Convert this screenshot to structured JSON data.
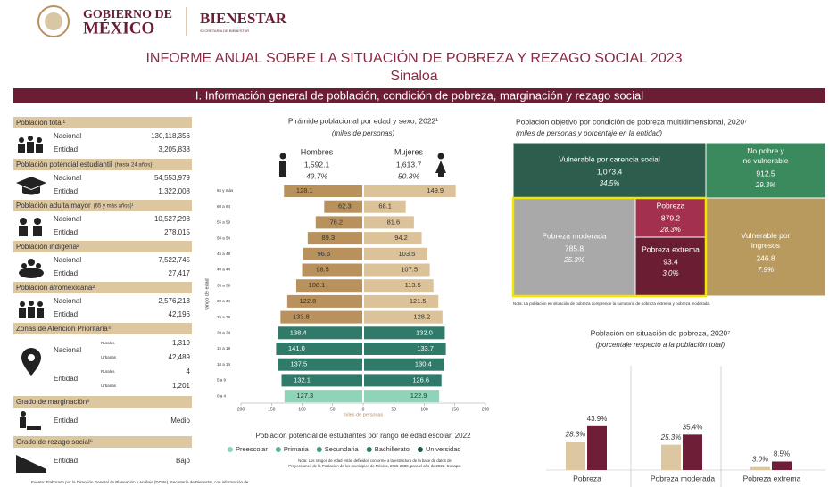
{
  "header": {
    "gov_line1": "GOBIERNO DE",
    "gov_line2": "MÉXICO",
    "agency": "BIENESTAR",
    "agency_sub": "SECRETARÍA DE BIENESTAR"
  },
  "title": "INFORME ANUAL SOBRE LA SITUACIÓN DE POBREZA Y REZAGO SOCIAL 2023",
  "state": "Sinaloa",
  "section": "I. Información general de población, condición de pobreza, marginación y rezago social",
  "indicators": [
    {
      "title": "Población total¹",
      "rows": [
        [
          "Nacional",
          "130,118,356"
        ],
        [
          "Entidad",
          "3,205,838"
        ]
      ]
    },
    {
      "title": "Población potencial estudiantil",
      "note": "(hasta 24 años)¹",
      "rows": [
        [
          "Nacional",
          "54,553,979"
        ],
        [
          "Entidad",
          "1,322,008"
        ]
      ]
    },
    {
      "title": "Población adulta mayor",
      "note": "(65 y más años)¹",
      "rows": [
        [
          "Nacional",
          "10,527,298"
        ],
        [
          "Entidad",
          "278,015"
        ]
      ]
    },
    {
      "title": "Población indígena²",
      "rows": [
        [
          "Nacional",
          "7,522,745"
        ],
        [
          "Entidad",
          "27,417"
        ]
      ]
    },
    {
      "title": "Población afromexicana²",
      "rows": [
        [
          "Nacional",
          "2,576,213"
        ],
        [
          "Entidad",
          "42,196"
        ]
      ]
    },
    {
      "title": "Zonas de Atención Prioritaria⁴",
      "groups": [
        {
          "label": "Nacional",
          "rows": [
            [
              "Rurales",
              "1,319"
            ],
            [
              "Urbanas",
              "42,489"
            ]
          ]
        },
        {
          "label": "Entidad",
          "rows": [
            [
              "Rurales",
              "4"
            ],
            [
              "Urbanas",
              "1,201"
            ]
          ]
        }
      ]
    },
    {
      "title": "Grado de marginación⁵",
      "rows": [
        [
          "Entidad",
          "Medio"
        ]
      ]
    },
    {
      "title": "Grado de rezago social⁶",
      "rows": [
        [
          "Entidad",
          "Bajo"
        ]
      ]
    }
  ],
  "footer": "Fuente: Elaborado por la Dirección General de Planeación y Análisis (DGPA), Secretaría de Bienestar, con información de",
  "chart_data": [
    {
      "type": "pyramid",
      "title": "Pirámide poblacional por edad y sexo, 2022¹",
      "subtitle": "(miles de personas)",
      "categories": [
        "65 y más",
        "60 a 64",
        "55 a 59",
        "50 a 54",
        "45 a 49",
        "40 a 44",
        "35 a 39",
        "30 a 34",
        "25 a 29",
        "20 a 24",
        "15 a 19",
        "10 a 14",
        "5 a 9",
        "0 a 4"
      ],
      "series": [
        {
          "name": "Hombres",
          "total": "1,592.1",
          "share": "49.7%",
          "values": [
            128.1,
            62.3,
            76.2,
            89.3,
            96.6,
            98.5,
            108.1,
            122.8,
            133.8,
            138.4,
            141.0,
            137.5,
            132.1,
            127.3
          ],
          "value_labels": [
            "128.1",
            "62.3",
            "76.2",
            "89.3",
            "96.6",
            "98.5",
            "108.1",
            "122.8",
            "133.8",
            "138.4",
            "141.0",
            "137.5",
            "132.1",
            "127.3"
          ],
          "colors": [
            "#b8915c",
            "#b8915c",
            "#b8915c",
            "#b8915c",
            "#b8915c",
            "#b8915c",
            "#b8915c",
            "#b8915c",
            "#b8915c",
            "#2f7a68",
            "#2f7a68",
            "#2f7a68",
            "#2f7a68",
            "#8fd3b9"
          ]
        },
        {
          "name": "Mujeres",
          "total": "1,613.7",
          "share": "50.3%",
          "values": [
            149.9,
            68.1,
            81.6,
            94.2,
            103.5,
            107.5,
            113.5,
            121.5,
            128.2,
            132.0,
            133.7,
            130.4,
            126.6,
            122.9
          ],
          "value_labels": [
            "149.9",
            "68.1",
            "81.6",
            "94.2",
            "103.5",
            "107.5",
            "113.5",
            "121.5",
            "128.2",
            "132.0",
            "133.7",
            "130.4",
            "126.6",
            "122.9"
          ],
          "colors": [
            "#dcc298",
            "#dcc298",
            "#dcc298",
            "#dcc298",
            "#dcc298",
            "#dcc298",
            "#dcc298",
            "#dcc298",
            "#dcc298",
            "#2f7a68",
            "#2f7a68",
            "#2f7a68",
            "#2f7a68",
            "#8fd3b9"
          ]
        }
      ],
      "xlim": [
        -200,
        200
      ],
      "xticks": [
        {
          "value": -200,
          "label": "200"
        },
        {
          "value": -150,
          "label": "150"
        },
        {
          "value": -100,
          "label": "100"
        },
        {
          "value": -50,
          "label": "50"
        },
        0,
        50,
        100,
        150,
        200
      ],
      "xlabel": "miles de personas",
      "ylabel": "rango de edad",
      "legend_title": "Población potencial de estudiantes por rango de edad escolar, 2022",
      "legend": [
        {
          "name": "Preescolar",
          "color": "#8fd3b9"
        },
        {
          "name": "Primaria",
          "color": "#5bb392"
        },
        {
          "name": "Secundaria",
          "color": "#3f9a7d"
        },
        {
          "name": "Bachillerato",
          "color": "#2f7a68"
        },
        {
          "name": "Universidad",
          "color": "#1e5a4b"
        }
      ],
      "note": "Nota: Los rangos de edad están definidos conforme a la estructura de la base de datos de Proyecciones de la Población de los municipios de México, 2015-2030, para el año de 2022. Conapo."
    },
    {
      "type": "treemap",
      "title": "Población objetivo por condición de pobreza multidimensional, 2020⁷",
      "subtitle": "(miles de personas y porcentaje en la entidad)",
      "categories": [
        "Vulnerable por carencia social",
        "No pobre y no vulnerable",
        "Pobreza moderada",
        "Pobreza",
        "Pobreza extrema",
        "Vulnerable por ingresos"
      ],
      "values": [
        1073.4,
        912.5,
        785.8,
        879.2,
        93.4,
        246.8
      ],
      "value_labels": [
        "1,073.4",
        "912.5",
        "785.8",
        "879.2",
        "93.4",
        "246.8"
      ],
      "shares": [
        34.5,
        29.3,
        25.3,
        28.3,
        3.0,
        7.9
      ],
      "share_labels": [
        "34.5%",
        "29.3%",
        "25.3%",
        "28.3%",
        "3.0%",
        "7.9%"
      ],
      "colors": [
        "#2d5d4c",
        "#3b8a5d",
        "#a9a9a9",
        "#a3304d",
        "#6b1d33",
        "#b89a5e"
      ],
      "note": "Nota: La población en situación de pobreza comprende la sumatoria de pobreza extrema y pobreza moderada."
    },
    {
      "type": "bar",
      "title": "Población en situación de pobreza, 2020⁷",
      "subtitle": "(porcentaje respecto a la población total)",
      "categories": [
        "Pobreza",
        "Pobreza moderada",
        "Pobreza extrema"
      ],
      "ylim": [
        0,
        50
      ],
      "series": [
        {
          "color": "#dcc7a0",
          "values": [
            28.3,
            25.3,
            3.0
          ],
          "value_labels": [
            "28.3%",
            "25.3%",
            "3.0%"
          ]
        },
        {
          "color": "#6e1f37",
          "values": [
            43.9,
            35.4,
            8.5
          ],
          "value_labels": [
            "43.9%",
            "35.4%",
            "8.5%"
          ]
        }
      ]
    }
  ]
}
